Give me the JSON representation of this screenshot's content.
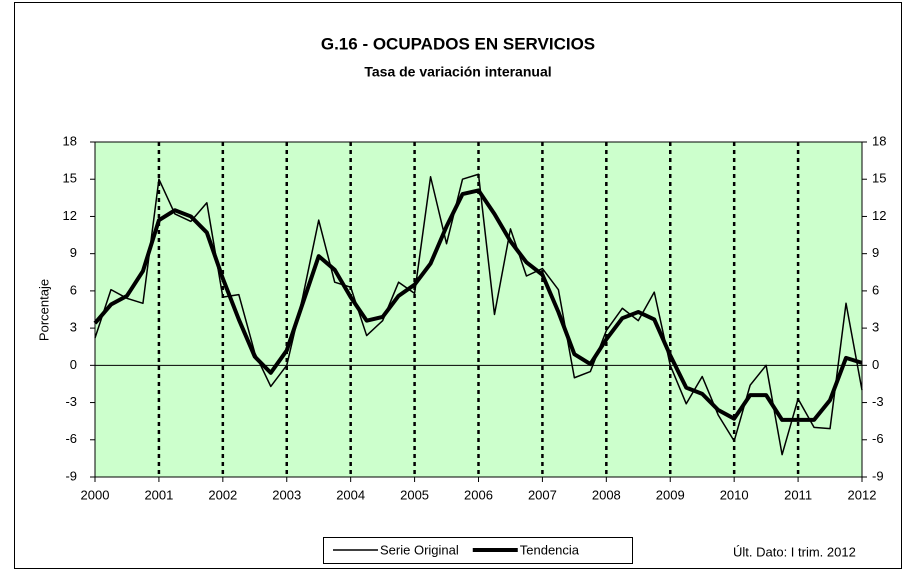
{
  "chart_data": {
    "type": "line",
    "title": "G.16 - OCUPADOS EN SERVICIOS",
    "subtitle": "Tasa de variación interanual",
    "ylabel": "Porcentaje",
    "note": "Últ. Dato: I trim. 2012",
    "x": [
      2000,
      2000.25,
      2000.5,
      2000.75,
      2001,
      2001.25,
      2001.5,
      2001.75,
      2002,
      2002.25,
      2002.5,
      2002.75,
      2003,
      2003.25,
      2003.5,
      2003.75,
      2004,
      2004.25,
      2004.5,
      2004.75,
      2005,
      2005.25,
      2005.5,
      2005.75,
      2006,
      2006.25,
      2006.5,
      2006.75,
      2007,
      2007.25,
      2007.5,
      2007.75,
      2008,
      2008.25,
      2008.5,
      2008.75,
      2009,
      2009.25,
      2009.5,
      2009.75,
      2010,
      2010.25,
      2010.5,
      2010.75,
      2011,
      2011.25,
      2011.5,
      2011.75,
      2012
    ],
    "series": [
      {
        "name": "Serie Original",
        "color": "#000000",
        "line_width": 1.5,
        "values": [
          2.2,
          6.1,
          5.4,
          5.0,
          15.0,
          12.2,
          11.6,
          13.1,
          5.5,
          5.7,
          1.0,
          -1.7,
          0.0,
          5.5,
          11.7,
          6.7,
          6.3,
          2.4,
          3.6,
          6.7,
          5.8,
          15.2,
          9.8,
          15.0,
          15.4,
          4.1,
          11.0,
          7.2,
          7.8,
          6.1,
          -1.0,
          -0.5,
          2.8,
          4.6,
          3.6,
          5.9,
          0.0,
          -3.1,
          -0.9,
          -4.0,
          -6.1,
          -1.6,
          0.0,
          -7.2,
          -2.7,
          -5.0,
          -5.1,
          5.0,
          -2.0
        ]
      },
      {
        "name": "Tendencia",
        "color": "#000000",
        "line_width": 4,
        "values": [
          3.4,
          4.9,
          5.6,
          7.6,
          11.7,
          12.5,
          12.0,
          10.7,
          7.0,
          3.7,
          0.7,
          -0.6,
          1.2,
          5.0,
          8.8,
          7.7,
          5.5,
          3.6,
          3.9,
          5.6,
          6.5,
          8.2,
          11.2,
          13.8,
          14.1,
          12.2,
          10.0,
          8.3,
          7.3,
          4.3,
          0.9,
          0.1,
          2.1,
          3.8,
          4.3,
          3.7,
          0.8,
          -1.8,
          -2.3,
          -3.6,
          -4.3,
          -2.4,
          -2.4,
          -4.4,
          -4.4,
          -4.4,
          -2.8,
          0.6,
          0.2
        ]
      }
    ],
    "xlim": [
      2000,
      2012
    ],
    "xticks": [
      2000,
      2001,
      2002,
      2003,
      2004,
      2005,
      2006,
      2007,
      2008,
      2009,
      2010,
      2011,
      2012
    ],
    "ylim": [
      -9,
      18
    ],
    "yticks": [
      -9,
      -6,
      -3,
      0,
      3,
      6,
      9,
      12,
      15,
      18
    ],
    "y2lim": [
      -9,
      18
    ],
    "y2ticks": [
      -9,
      -6,
      -3,
      0,
      3,
      6,
      9,
      12,
      15,
      18
    ],
    "vgrid": true,
    "plot_background": "#ccffcc",
    "legend": "bottom"
  }
}
